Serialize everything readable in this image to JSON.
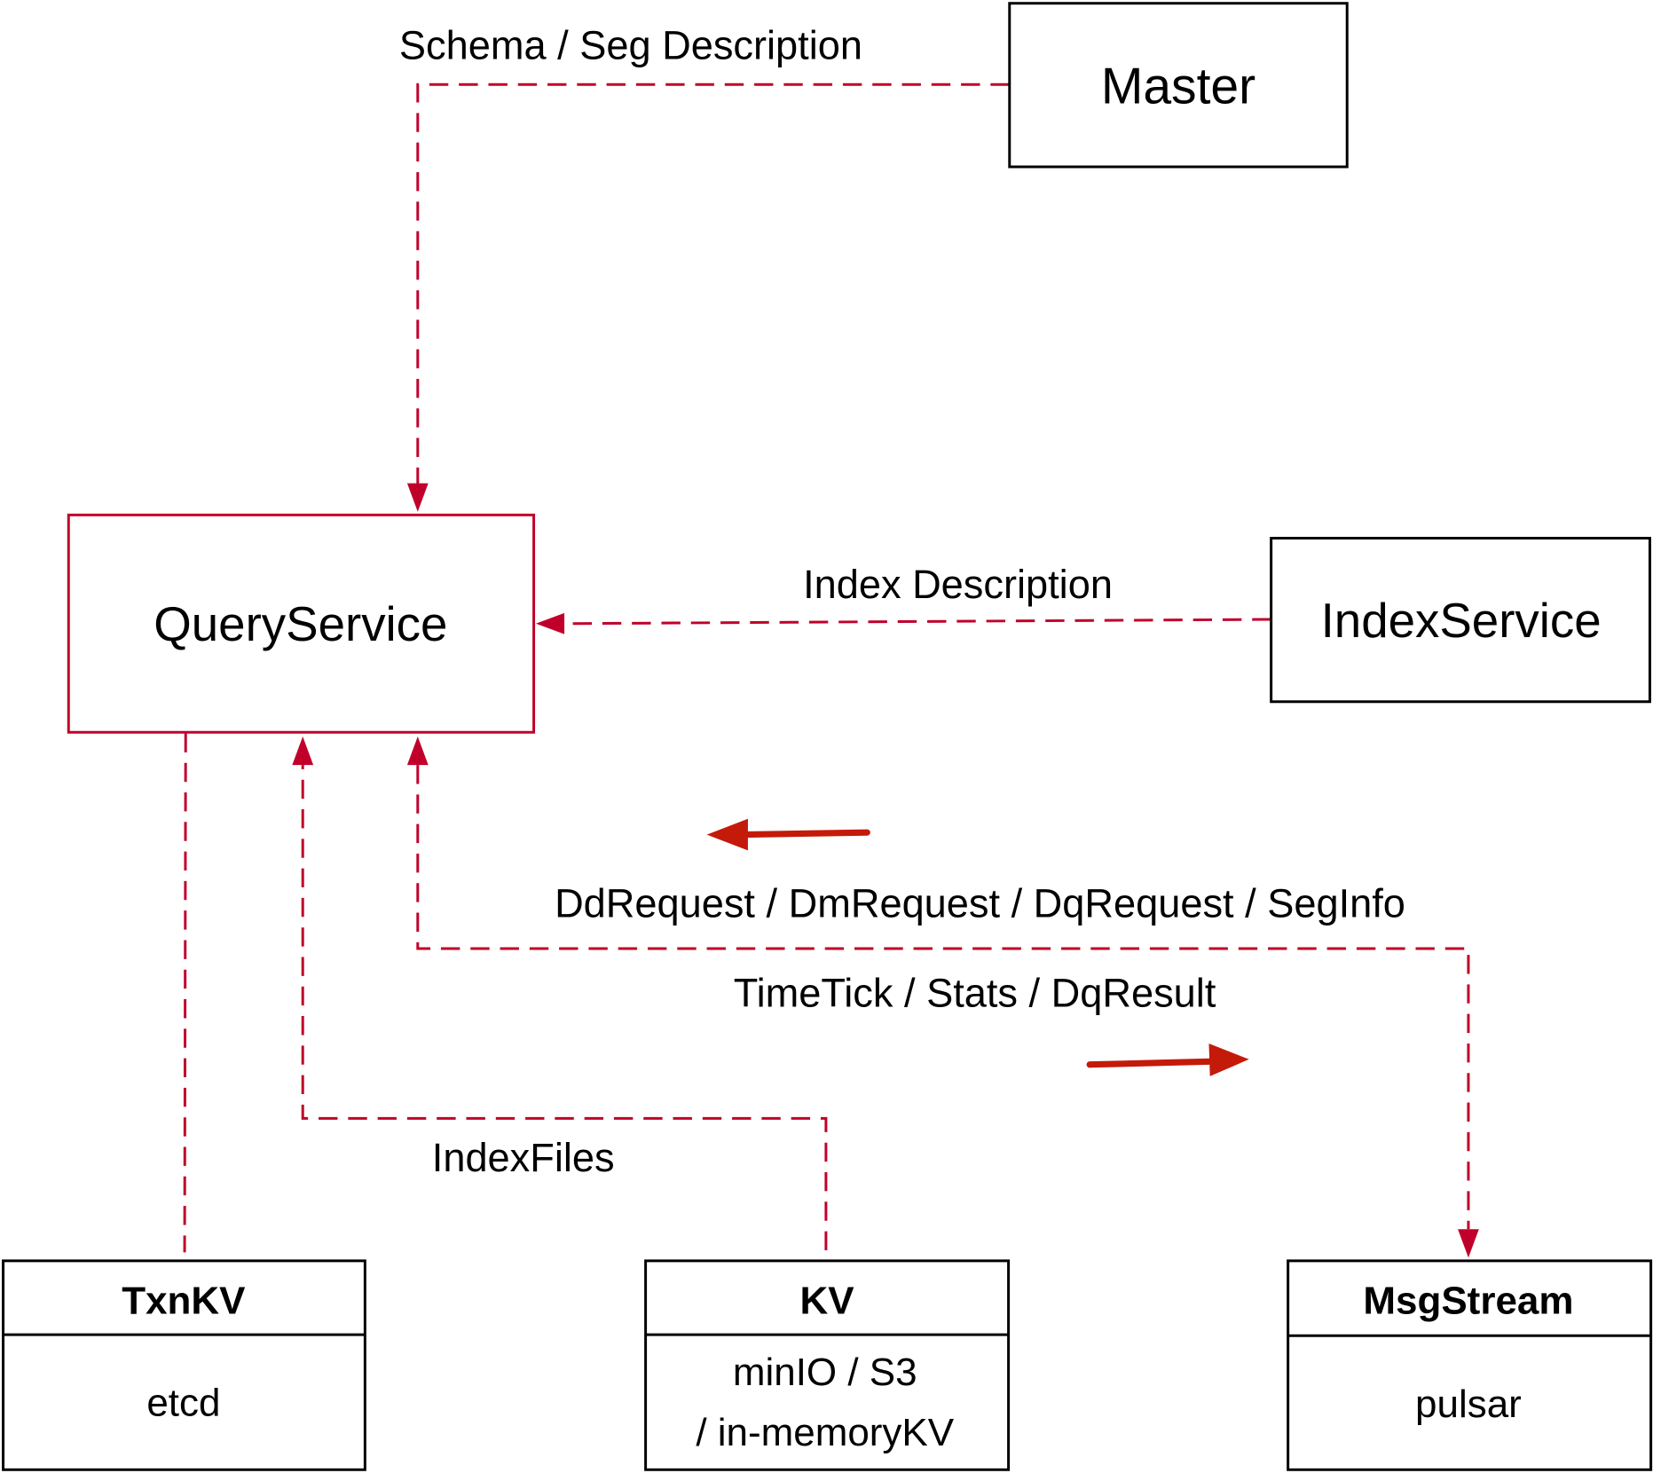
{
  "nodes": {
    "master": "Master",
    "query_service": "QueryService",
    "index_service": "IndexService",
    "txnkv": {
      "title": "TxnKV",
      "body": "etcd"
    },
    "kv": {
      "title": "KV",
      "body_line1": "minIO / S3",
      "body_line2": "/ in-memoryKV"
    },
    "msgstream": {
      "title": "MsgStream",
      "body": "pulsar"
    }
  },
  "edges": {
    "schema": "Schema / Seg Description",
    "index_desc": "Index Description",
    "requests": "DdRequest / DmRequest / DqRequest / SegInfo",
    "results": "TimeTick / Stats / DqResult",
    "index_files": "IndexFiles"
  },
  "colors": {
    "edge": "#c0002a",
    "direction_arrow": "#c41a0a",
    "box_border": "#000000"
  }
}
